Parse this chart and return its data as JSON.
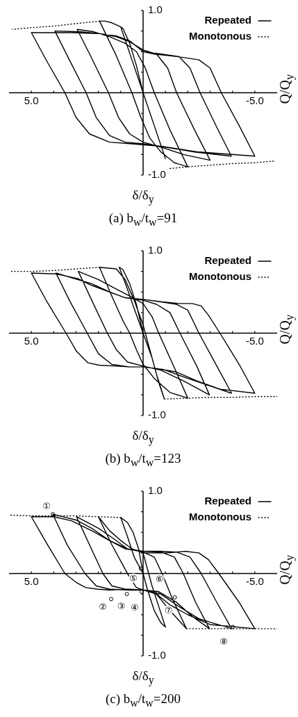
{
  "chart_data": [
    {
      "type": "line",
      "title": "(a) b$_{w}$/t$_{w}$=91",
      "xlabel": "δ/δ$_{y}$",
      "ylabel": "Q/Q$_{y}$",
      "xlim": [
        6,
        -6
      ],
      "xticks": [
        {
          "value": 5,
          "label": "5.0"
        },
        {
          "value": 4,
          "label": null
        },
        {
          "value": 3,
          "label": null
        },
        {
          "value": 2,
          "label": null
        },
        {
          "value": 1,
          "label": null
        },
        {
          "value": -1,
          "label": null
        },
        {
          "value": -2,
          "label": null
        },
        {
          "value": -3,
          "label": null
        },
        {
          "value": -4,
          "label": null
        },
        {
          "value": -5,
          "label": "-5.0"
        }
      ],
      "ylim": [
        -1,
        1
      ],
      "yticks": [
        {
          "value": 1,
          "label": "1.0"
        },
        {
          "value": 0.75,
          "label": null
        },
        {
          "value": 0.5,
          "label": null
        },
        {
          "value": 0.25,
          "label": null
        },
        {
          "value": -0.25,
          "label": null
        },
        {
          "value": -0.5,
          "label": null
        },
        {
          "value": -0.75,
          "label": null
        },
        {
          "value": -1,
          "label": "-1.0"
        }
      ],
      "grid": false,
      "legend": "top right",
      "marker": "none",
      "series": [
        {
          "name": "Repeated",
          "color": "#000000",
          "line_style": "solid",
          "x": [
            0,
            0.3,
            0.6,
            0.9,
            1.0,
            0.5,
            0,
            -0.5,
            -1.0,
            -0.5,
            0,
            0.5,
            1.0,
            1.4,
            1.7,
            1.95,
            1.2,
            0.5,
            0.1,
            -0.3,
            -0.8,
            -1.4,
            -2.0,
            -1.2,
            -0.5,
            -0.1,
            0.3,
            0.8,
            1.5,
            2.2,
            2.95,
            2.3,
            1.55,
            1.1,
            0.6,
            0,
            -0.8,
            -1.8,
            -3.0,
            -2.3,
            -1.5,
            -1.1,
            -0.6,
            0,
            0.6,
            1.2,
            2.0,
            2.8,
            3.95,
            3.3,
            2.55,
            2.1,
            1.5,
            0.8,
            0,
            -1.0,
            -2.3,
            -3.95,
            -3.3,
            -2.55,
            -2.1,
            -1.6,
            -0.8,
            0,
            0.6,
            1.2,
            2.0,
            3.2,
            5.0,
            4.3,
            3.5,
            3.0,
            2.4,
            1.5,
            0.5,
            -0.8,
            -2.5,
            -5.0,
            -4.3,
            -3.5,
            -3.0,
            -2.5,
            -1.5,
            -0.5,
            0
          ],
          "values": [
            0,
            0.33,
            0.6,
            0.78,
            0.8,
            0.4,
            0,
            -0.4,
            -0.8,
            -0.4,
            0,
            0.4,
            0.8,
            0.85,
            0.87,
            0.87,
            0.45,
            0,
            -0.3,
            -0.55,
            -0.72,
            -0.85,
            -0.9,
            -0.45,
            0,
            0.3,
            0.5,
            0.6,
            0.68,
            0.74,
            0.77,
            0.42,
            0,
            -0.3,
            -0.5,
            -0.6,
            -0.66,
            -0.75,
            -0.82,
            -0.45,
            0,
            0.3,
            0.47,
            0.52,
            0.62,
            0.68,
            0.72,
            0.74,
            0.75,
            0.4,
            0,
            -0.3,
            -0.52,
            -0.6,
            -0.62,
            -0.66,
            -0.72,
            -0.77,
            -0.42,
            0,
            0.3,
            0.44,
            0.47,
            0.5,
            0.63,
            0.69,
            0.72,
            0.73,
            0.73,
            0.38,
            0,
            -0.3,
            -0.5,
            -0.6,
            -0.62,
            -0.65,
            -0.72,
            -0.77,
            -0.4,
            0,
            0.3,
            0.4,
            0.44,
            0.47,
            0.5
          ]
        },
        {
          "name": "Monotonous",
          "color": "#000000",
          "line_style": "dotted",
          "x": [
            1.95,
            3,
            4,
            5,
            5.85,
            null,
            -1.2,
            -2,
            -3,
            -4,
            -5,
            -5.85
          ],
          "values": [
            0.87,
            0.84,
            0.81,
            0.79,
            0.77,
            null,
            -0.92,
            -0.9,
            -0.88,
            -0.86,
            -0.85,
            -0.83
          ]
        }
      ]
    },
    {
      "type": "line",
      "title": "(b) b$_{w}$/t$_{w}$=123",
      "xlabel": "δ/δ$_{y}$",
      "ylabel": "Q/Q$_{y}$",
      "xlim": [
        6,
        -6
      ],
      "xticks": [
        {
          "value": 5,
          "label": "5.0"
        },
        {
          "value": 4,
          "label": null
        },
        {
          "value": 3,
          "label": null
        },
        {
          "value": 2,
          "label": null
        },
        {
          "value": 1,
          "label": null
        },
        {
          "value": -1,
          "label": null
        },
        {
          "value": -2,
          "label": null
        },
        {
          "value": -3,
          "label": null
        },
        {
          "value": -4,
          "label": null
        },
        {
          "value": -5,
          "label": "-5.0"
        }
      ],
      "ylim": [
        -1,
        1
      ],
      "yticks": [
        {
          "value": 1,
          "label": "1.0"
        },
        {
          "value": 0.75,
          "label": null
        },
        {
          "value": 0.5,
          "label": null
        },
        {
          "value": 0.25,
          "label": null
        },
        {
          "value": -0.25,
          "label": null
        },
        {
          "value": -0.5,
          "label": null
        },
        {
          "value": -0.75,
          "label": null
        },
        {
          "value": -1,
          "label": "-1.0"
        }
      ],
      "grid": false,
      "legend": "top right",
      "marker": "none",
      "series": [
        {
          "name": "Repeated",
          "color": "#000000",
          "line_style": "solid",
          "x": [
            0,
            0.3,
            0.6,
            0.9,
            1.07,
            0.76,
            0.4,
            0,
            -0.4,
            -0.7,
            -0.95,
            -0.6,
            -0.3,
            0,
            0.4,
            0.8,
            1.2,
            1.95,
            1.4,
            0.9,
            0.6,
            0.3,
            0,
            -0.5,
            -1.2,
            -2.0,
            -1.4,
            -0.7,
            -0.4,
            0,
            0.6,
            1.3,
            2.0,
            2.9,
            2.3,
            1.6,
            1.2,
            0.7,
            0,
            -0.8,
            -1.8,
            -2.97,
            -2.4,
            -1.65,
            -1.2,
            -0.6,
            0,
            0.8,
            1.5,
            2.3,
            3.9,
            3.3,
            2.5,
            2.0,
            1.4,
            0.6,
            0,
            -0.9,
            -2.0,
            -3.96,
            -3.3,
            -2.5,
            -2.0,
            -1.5,
            -0.8,
            0,
            0.8,
            1.5,
            2.3,
            2.9,
            3.9,
            5.0,
            4.3,
            3.45,
            2.98,
            2.47,
            1.95,
            1.2,
            0.6,
            0,
            -0.6,
            -1.47,
            -2.4,
            -3.44,
            -5.0,
            -4.3,
            -3.44,
            -2.92,
            -2.6,
            -2.2,
            -1.57,
            -0.85,
            0
          ],
          "values": [
            0,
            0.35,
            0.6,
            0.77,
            0.8,
            0.58,
            0.3,
            0,
            -0.3,
            -0.6,
            -0.8,
            -0.5,
            -0.2,
            0.1,
            0.4,
            0.65,
            0.78,
            0.8,
            0.45,
            0.15,
            0,
            -0.2,
            -0.38,
            -0.55,
            -0.72,
            -0.79,
            -0.42,
            0,
            0.2,
            0.36,
            0.45,
            0.55,
            0.65,
            0.75,
            0.4,
            0,
            -0.2,
            -0.35,
            -0.4,
            -0.45,
            -0.58,
            -0.75,
            -0.4,
            0,
            0.25,
            0.35,
            0.4,
            0.43,
            0.5,
            0.6,
            0.73,
            0.4,
            0,
            -0.25,
            -0.38,
            -0.41,
            -0.41,
            -0.44,
            -0.55,
            -0.73,
            -0.4,
            0,
            0.28,
            0.35,
            0.38,
            0.41,
            0.43,
            0.5,
            0.58,
            0.66,
            0.72,
            0.73,
            0.38,
            0,
            -0.22,
            -0.36,
            -0.39,
            -0.4,
            -0.41,
            -0.41,
            -0.43,
            -0.47,
            -0.58,
            -0.68,
            -0.73,
            -0.38,
            0,
            0.22,
            0.33,
            0.36,
            0.36,
            0.38,
            0.41
          ]
        },
        {
          "name": "Monotonous",
          "color": "#000000",
          "line_style": "dotted",
          "x": [
            1.95,
            3,
            4,
            5,
            6,
            null,
            -0.95,
            -2,
            -3,
            -4,
            -5,
            -6
          ],
          "values": [
            0.8,
            0.78,
            0.76,
            0.75,
            0.75,
            null,
            -0.8,
            -0.79,
            -0.78,
            -0.78,
            -0.77,
            -0.77
          ]
        }
      ]
    },
    {
      "type": "line",
      "title": "(c) b$_{w}$/t$_{w}$=200",
      "xlabel": "δ/δ$_{y}$",
      "ylabel": "Q/Q$_{y}$",
      "xlim": [
        6,
        -6
      ],
      "xticks": [
        {
          "value": 5,
          "label": "5.0"
        },
        {
          "value": 4,
          "label": null
        },
        {
          "value": 3,
          "label": null
        },
        {
          "value": 2,
          "label": null
        },
        {
          "value": 1,
          "label": null
        },
        {
          "value": -1,
          "label": null
        },
        {
          "value": -2,
          "label": null
        },
        {
          "value": -3,
          "label": null
        },
        {
          "value": -4,
          "label": null
        },
        {
          "value": -5,
          "label": "-5.0"
        }
      ],
      "ylim": [
        -1,
        1
      ],
      "yticks": [
        {
          "value": 1,
          "label": "1.0"
        },
        {
          "value": 0.75,
          "label": null
        },
        {
          "value": 0.5,
          "label": null
        },
        {
          "value": 0.25,
          "label": null
        },
        {
          "value": -0.25,
          "label": null
        },
        {
          "value": -0.5,
          "label": null
        },
        {
          "value": -0.75,
          "label": null
        },
        {
          "value": -1,
          "label": "-1.0"
        }
      ],
      "grid": false,
      "legend": "top right",
      "marker": "none",
      "annotations": [
        {
          "text": "①",
          "x": 4.04,
          "y": 0.72
        },
        {
          "text": "②",
          "x": 1.43,
          "y": -0.31
        },
        {
          "text": "③",
          "x": 0.73,
          "y": -0.25
        },
        {
          "text": "④",
          "x": 0.07,
          "y": -0.22
        },
        {
          "text": "⑤",
          "x": 0.1,
          "y": 0.06
        },
        {
          "text": "⑥",
          "x": -0.64,
          "y": -0.24
        },
        {
          "text": "⑦",
          "x": -1.42,
          "y": -0.29
        },
        {
          "text": "⑧",
          "x": -4.01,
          "y": -0.65
        }
      ],
      "series": [
        {
          "name": "Repeated",
          "color": "#000000",
          "line_style": "solid",
          "x": [
            0,
            0.2,
            0.45,
            0.7,
            1.0,
            0.7,
            0.4,
            0,
            -0.2,
            -0.5,
            -0.8,
            -1.0,
            -0.7,
            -0.4,
            -0.1,
            0,
            0.5,
            1.0,
            1.5,
            2.0,
            1.4,
            0.9,
            0.6,
            0.3,
            0,
            -0.6,
            -1.2,
            -1.94,
            -1.3,
            -0.85,
            -0.5,
            0,
            0.7,
            1.3,
            2.0,
            2.98,
            2.4,
            1.8,
            1.4,
            0.8,
            0,
            -0.7,
            -1.5,
            -2.2,
            -2.97,
            -2.35,
            -1.8,
            -1.4,
            -0.8,
            0,
            0.7,
            1.5,
            2.3,
            3.0,
            4.04,
            3.4,
            2.6,
            2.1,
            1.5,
            0.7,
            0,
            -0.8,
            -1.6,
            -2.5,
            -3.96,
            -3.3,
            -2.6,
            -2.1,
            -1.5,
            -0.8,
            0,
            0.8,
            1.5,
            2.3,
            3.2,
            4.0,
            5.0,
            4.3,
            3.5,
            2.98,
            2.57,
            2.05,
            1.53,
            0.7,
            0,
            -0.6,
            -1.2,
            -2.0,
            -3.0,
            -5.0,
            -4.3,
            -3.39,
            -2.92,
            -2.5,
            -1.89,
            -1.06,
            0
          ],
          "values": [
            0,
            0.3,
            0.5,
            0.62,
            0.68,
            0.45,
            0.2,
            0,
            -0.2,
            -0.45,
            -0.6,
            -0.65,
            -0.4,
            -0.15,
            0.15,
            0.25,
            0.3,
            0.4,
            0.52,
            0.69,
            0.35,
            0.1,
            -0.05,
            -0.17,
            -0.2,
            -0.25,
            -0.45,
            -0.67,
            -0.3,
            0,
            0.2,
            0.26,
            0.3,
            0.42,
            0.55,
            0.69,
            0.35,
            0,
            -0.15,
            -0.19,
            -0.2,
            -0.22,
            -0.35,
            -0.52,
            -0.67,
            -0.35,
            0,
            0.2,
            0.26,
            0.27,
            0.3,
            0.4,
            0.55,
            0.65,
            0.72,
            0.35,
            0,
            -0.15,
            -0.19,
            -0.2,
            -0.2,
            -0.25,
            -0.4,
            -0.55,
            -0.67,
            -0.35,
            0,
            0.2,
            0.26,
            0.27,
            0.27,
            0.3,
            0.4,
            0.52,
            0.64,
            0.69,
            0.69,
            0.36,
            0,
            -0.11,
            -0.17,
            -0.19,
            -0.2,
            -0.19,
            -0.2,
            -0.25,
            -0.38,
            -0.5,
            -0.62,
            -0.67,
            -0.35,
            0,
            0.17,
            0.25,
            0.27,
            0.25,
            0.25
          ]
        },
        {
          "name": "Monotonous",
          "color": "#000000",
          "line_style": "dotted",
          "x": [
            1.0,
            2,
            3,
            4,
            5,
            6,
            null,
            -1.94,
            -3,
            -4,
            -5,
            -6
          ],
          "values": [
            0.68,
            0.69,
            0.7,
            0.7,
            0.7,
            0.71,
            null,
            -0.67,
            -0.67,
            -0.67,
            -0.67,
            -0.67
          ]
        }
      ]
    }
  ]
}
